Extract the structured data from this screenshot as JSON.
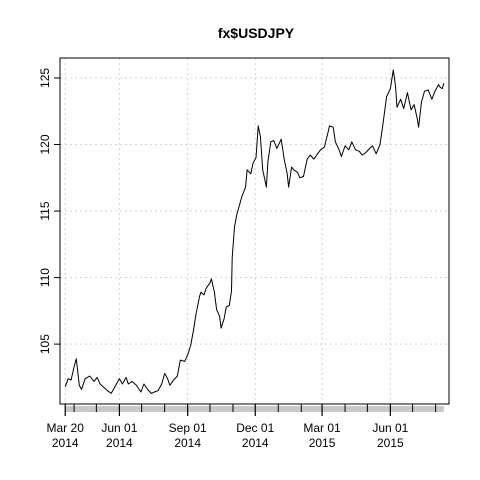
{
  "chart_data": {
    "type": "line",
    "title": "fx$USDJPY",
    "xlabel": "",
    "ylabel": "",
    "grid": true,
    "ylim": [
      100.5,
      126.5
    ],
    "xlim": [
      "2014-03-13",
      "2015-08-19"
    ],
    "y_ticks": [
      105,
      110,
      115,
      120,
      125
    ],
    "x_ticks": [
      {
        "date": "2014-03-20",
        "label1": "Mar 20",
        "label2": "2014"
      },
      {
        "date": "2014-06-01",
        "label1": "Jun 01",
        "label2": "2014"
      },
      {
        "date": "2014-09-01",
        "label1": "Sep 01",
        "label2": "2014"
      },
      {
        "date": "2014-12-01",
        "label1": "Dec 01",
        "label2": "2014"
      },
      {
        "date": "2015-03-01",
        "label1": "Mar 01",
        "label2": "2015"
      },
      {
        "date": "2015-06-01",
        "label1": "Jun 01",
        "label2": "2015"
      }
    ],
    "x_minor_ticks": [
      "2014-04-01",
      "2014-05-01",
      "2014-07-01",
      "2014-08-01",
      "2014-10-01",
      "2014-11-01",
      "2015-01-01",
      "2015-02-01",
      "2015-04-01",
      "2015-05-01",
      "2015-07-01",
      "2015-08-01"
    ],
    "series": [
      {
        "color": "#000000",
        "points": [
          [
            "2014-03-20",
            101.8
          ],
          [
            "2014-03-24",
            102.4
          ],
          [
            "2014-03-28",
            102.3
          ],
          [
            "2014-04-01",
            103.3
          ],
          [
            "2014-04-04",
            103.9
          ],
          [
            "2014-04-08",
            101.9
          ],
          [
            "2014-04-11",
            101.6
          ],
          [
            "2014-04-16",
            102.4
          ],
          [
            "2014-04-22",
            102.6
          ],
          [
            "2014-04-28",
            102.2
          ],
          [
            "2014-05-02",
            102.5
          ],
          [
            "2014-05-06",
            102.0
          ],
          [
            "2014-05-12",
            101.7
          ],
          [
            "2014-05-16",
            101.5
          ],
          [
            "2014-05-21",
            101.3
          ],
          [
            "2014-05-26",
            101.8
          ],
          [
            "2014-06-01",
            102.4
          ],
          [
            "2014-06-05",
            102.0
          ],
          [
            "2014-06-10",
            102.5
          ],
          [
            "2014-06-13",
            102.0
          ],
          [
            "2014-06-18",
            102.2
          ],
          [
            "2014-06-24",
            101.9
          ],
          [
            "2014-06-30",
            101.4
          ],
          [
            "2014-07-04",
            102.0
          ],
          [
            "2014-07-09",
            101.6
          ],
          [
            "2014-07-14",
            101.3
          ],
          [
            "2014-07-18",
            101.4
          ],
          [
            "2014-07-23",
            101.5
          ],
          [
            "2014-07-28",
            102.0
          ],
          [
            "2014-08-01",
            102.8
          ],
          [
            "2014-08-05",
            102.4
          ],
          [
            "2014-08-08",
            101.9
          ],
          [
            "2014-08-13",
            102.3
          ],
          [
            "2014-08-18",
            102.6
          ],
          [
            "2014-08-22",
            103.8
          ],
          [
            "2014-08-28",
            103.7
          ],
          [
            "2014-09-01",
            104.2
          ],
          [
            "2014-09-05",
            104.9
          ],
          [
            "2014-09-09",
            106.1
          ],
          [
            "2014-09-12",
            107.2
          ],
          [
            "2014-09-17",
            108.6
          ],
          [
            "2014-09-19",
            108.9
          ],
          [
            "2014-09-23",
            108.7
          ],
          [
            "2014-09-26",
            109.2
          ],
          [
            "2014-10-01",
            109.6
          ],
          [
            "2014-10-03",
            109.9
          ],
          [
            "2014-10-07",
            108.9
          ],
          [
            "2014-10-10",
            107.6
          ],
          [
            "2014-10-14",
            107.1
          ],
          [
            "2014-10-16",
            106.2
          ],
          [
            "2014-10-20",
            106.9
          ],
          [
            "2014-10-23",
            107.8
          ],
          [
            "2014-10-27",
            107.9
          ],
          [
            "2014-10-30",
            109.0
          ],
          [
            "2014-10-31",
            111.5
          ],
          [
            "2014-11-03",
            113.8
          ],
          [
            "2014-11-06",
            114.7
          ],
          [
            "2014-11-10",
            115.5
          ],
          [
            "2014-11-13",
            116.1
          ],
          [
            "2014-11-18",
            116.8
          ],
          [
            "2014-11-20",
            118.1
          ],
          [
            "2014-11-25",
            117.8
          ],
          [
            "2014-11-28",
            118.6
          ],
          [
            "2014-12-02",
            119.0
          ],
          [
            "2014-12-05",
            121.4
          ],
          [
            "2014-12-08",
            120.6
          ],
          [
            "2014-12-11",
            118.1
          ],
          [
            "2014-12-16",
            116.8
          ],
          [
            "2014-12-18",
            118.7
          ],
          [
            "2014-12-22",
            120.2
          ],
          [
            "2014-12-26",
            120.3
          ],
          [
            "2014-12-30",
            119.7
          ],
          [
            "2015-01-05",
            120.4
          ],
          [
            "2015-01-09",
            118.9
          ],
          [
            "2015-01-13",
            117.8
          ],
          [
            "2015-01-15",
            116.8
          ],
          [
            "2015-01-19",
            118.3
          ],
          [
            "2015-01-22",
            118.1
          ],
          [
            "2015-01-27",
            117.9
          ],
          [
            "2015-01-30",
            117.5
          ],
          [
            "2015-02-04",
            117.6
          ],
          [
            "2015-02-09",
            118.9
          ],
          [
            "2015-02-13",
            119.2
          ],
          [
            "2015-02-18",
            118.9
          ],
          [
            "2015-02-23",
            119.3
          ],
          [
            "2015-02-27",
            119.6
          ],
          [
            "2015-03-04",
            119.8
          ],
          [
            "2015-03-09",
            120.9
          ],
          [
            "2015-03-11",
            121.4
          ],
          [
            "2015-03-16",
            121.3
          ],
          [
            "2015-03-19",
            120.2
          ],
          [
            "2015-03-24",
            119.6
          ],
          [
            "2015-03-27",
            119.1
          ],
          [
            "2015-04-01",
            119.9
          ],
          [
            "2015-04-06",
            119.6
          ],
          [
            "2015-04-10",
            120.2
          ],
          [
            "2015-04-15",
            119.6
          ],
          [
            "2015-04-20",
            119.5
          ],
          [
            "2015-04-24",
            119.2
          ],
          [
            "2015-04-29",
            119.4
          ],
          [
            "2015-05-04",
            119.7
          ],
          [
            "2015-05-08",
            119.9
          ],
          [
            "2015-05-13",
            119.3
          ],
          [
            "2015-05-18",
            120.0
          ],
          [
            "2015-05-22",
            121.5
          ],
          [
            "2015-05-27",
            123.6
          ],
          [
            "2015-06-01",
            124.2
          ],
          [
            "2015-06-05",
            125.6
          ],
          [
            "2015-06-08",
            124.4
          ],
          [
            "2015-06-10",
            122.8
          ],
          [
            "2015-06-15",
            123.4
          ],
          [
            "2015-06-19",
            122.7
          ],
          [
            "2015-06-24",
            123.9
          ],
          [
            "2015-06-29",
            122.6
          ],
          [
            "2015-07-03",
            123.0
          ],
          [
            "2015-07-07",
            122.0
          ],
          [
            "2015-07-09",
            121.3
          ],
          [
            "2015-07-13",
            123.2
          ],
          [
            "2015-07-17",
            124.0
          ],
          [
            "2015-07-22",
            124.1
          ],
          [
            "2015-07-27",
            123.4
          ],
          [
            "2015-07-31",
            124.0
          ],
          [
            "2015-08-05",
            124.5
          ],
          [
            "2015-08-07",
            124.3
          ],
          [
            "2015-08-10",
            124.2
          ],
          [
            "2015-08-12",
            124.6
          ]
        ]
      }
    ]
  }
}
